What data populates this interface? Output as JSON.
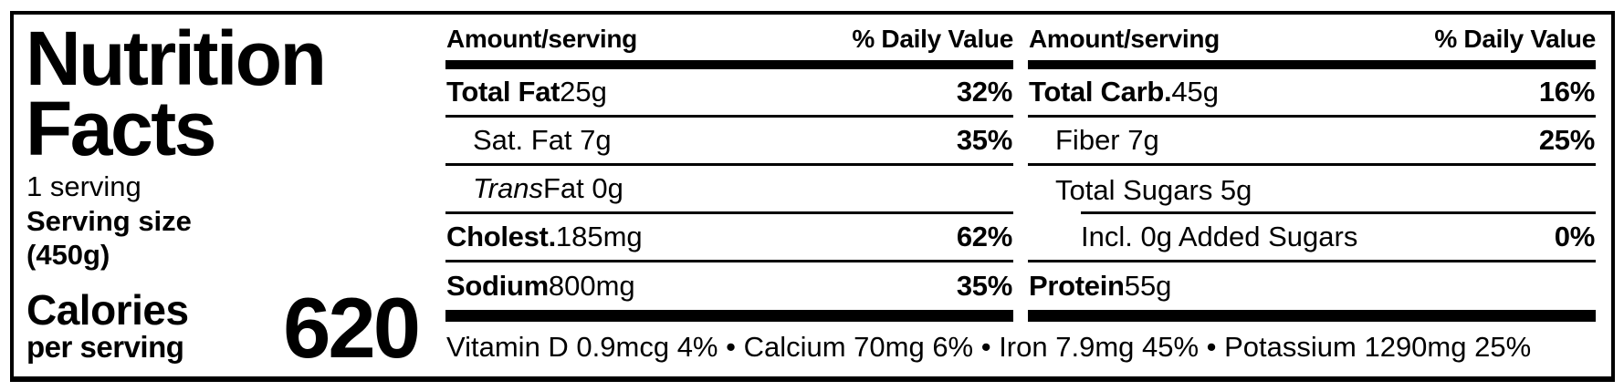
{
  "title": "Nutrition Facts",
  "serving": {
    "line1": "1 serving",
    "line2": "Serving size",
    "line3": "(450g)"
  },
  "calories": {
    "label": "Calories",
    "sublabel": "per serving",
    "value": "620"
  },
  "table": {
    "header": {
      "amount": "Amount/serving",
      "dv": "% Daily Value"
    },
    "left_rows": [
      {
        "bold": "Total Fat",
        "rest": " 25g",
        "dv": "32%"
      },
      {
        "bold": "",
        "rest": "Sat. Fat 7g",
        "dv": "35%"
      },
      {
        "italic": "Trans",
        "rest": " Fat 0g",
        "dv": ""
      },
      {
        "bold": "Cholest.",
        "rest": " 185mg",
        "dv": "62%"
      },
      {
        "bold": "Sodium",
        "rest": " 800mg",
        "dv": "35%"
      }
    ],
    "right_rows": [
      {
        "bold": "Total Carb.",
        "rest": " 45g",
        "dv": "16%"
      },
      {
        "bold": "",
        "rest": "Fiber 7g",
        "dv": "25%"
      },
      {
        "bold": "",
        "rest": "Total Sugars 5g",
        "dv": ""
      },
      {
        "bold": "",
        "rest": "Incl. 0g Added Sugars",
        "dv": "0%"
      },
      {
        "bold": "Protein",
        "rest": " 55g",
        "dv": ""
      }
    ],
    "footnote": "Vitamin D 0.9mcg 4% • Calcium 70mg 6% • Iron 7.9mg 45% • Potassium 1290mg 25%"
  },
  "colors": {
    "ink": "#000000",
    "paper": "#ffffff"
  }
}
